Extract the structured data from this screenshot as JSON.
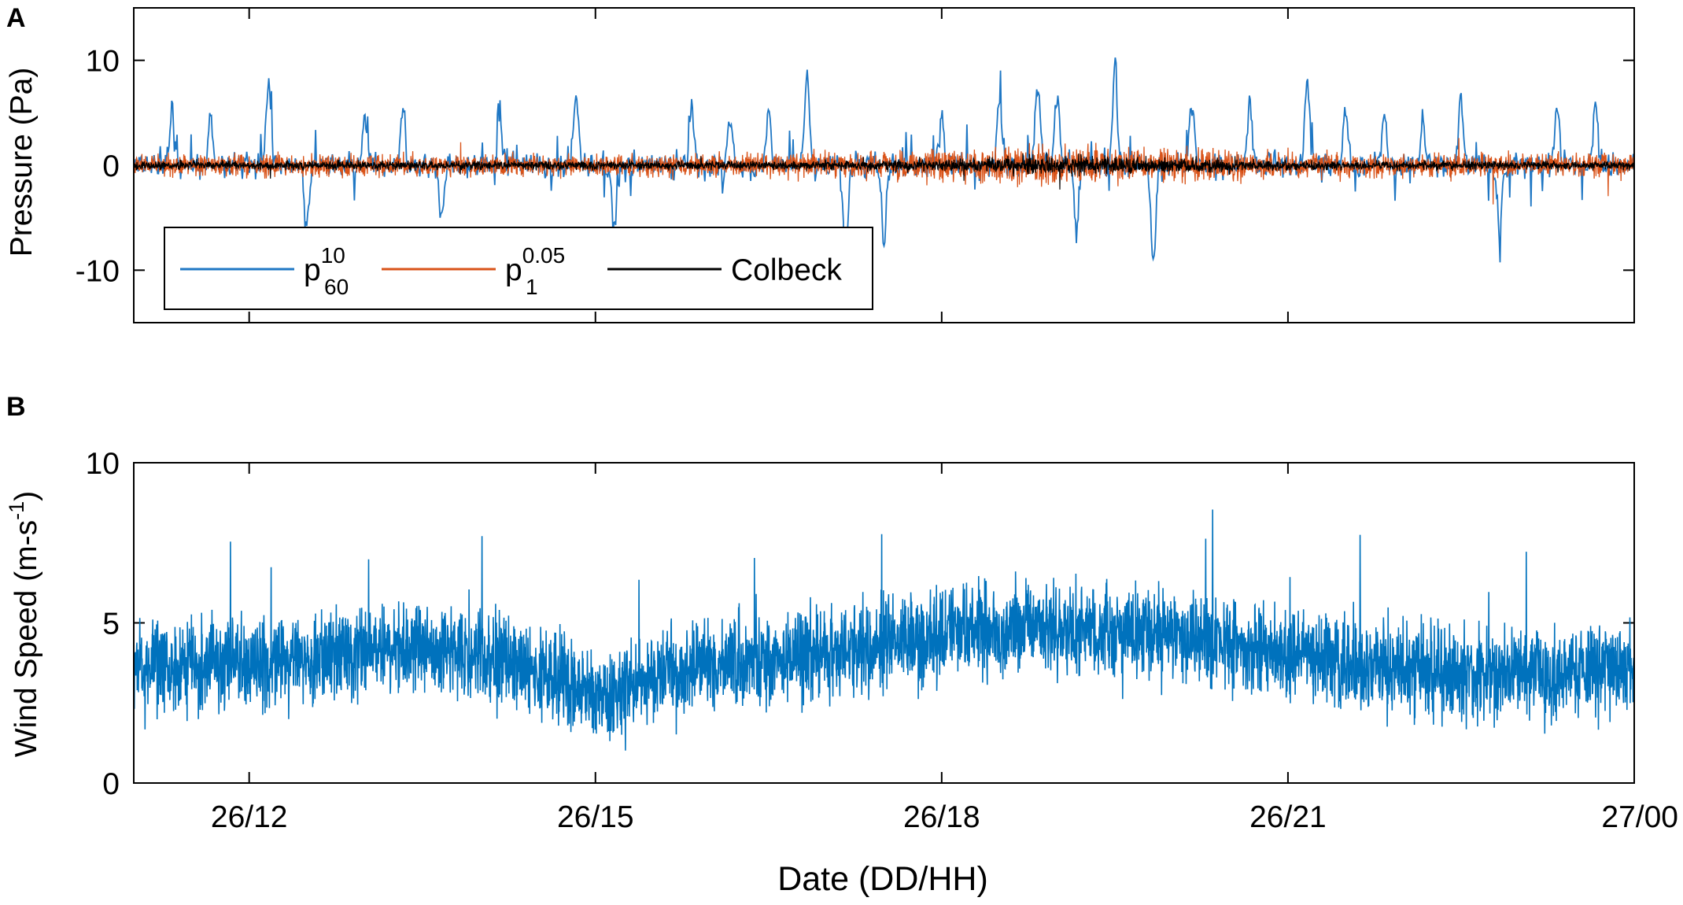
{
  "chart_data": [
    {
      "panel_label": "A",
      "type": "line",
      "xlabel": "",
      "ylabel": "Pressure (Pa)",
      "xlim": [
        "26/11:00",
        "27/00:00"
      ],
      "ylim": [
        -15,
        15
      ],
      "yticks": [
        -10,
        0,
        10
      ],
      "yticklabels": [
        "-10",
        "0",
        "10"
      ],
      "grid": false,
      "legend": {
        "position": "bottom-left",
        "orientation": "horizontal"
      },
      "series": [
        {
          "name": "p_60^10",
          "legend_base": "p",
          "legend_sub": "60",
          "legend_sup": "10",
          "color": "#1f77c4",
          "amplitude_pa": 10,
          "x": [
            "26/11:20",
            "26/11:40",
            "26/12:10",
            "26/12:30",
            "26/13:00",
            "26/13:20",
            "26/13:40",
            "26/14:10",
            "26/14:50",
            "26/15:10",
            "26/15:50",
            "26/16:10",
            "26/16:30",
            "26/16:50",
            "26/17:10",
            "26/17:30",
            "26/18:00",
            "26/18:30",
            "26/18:50",
            "26/19:00",
            "26/19:10",
            "26/19:30",
            "26/19:50",
            "26/20:10",
            "26/20:40",
            "26/21:10",
            "26/21:30",
            "26/21:50",
            "26/22:10",
            "26/22:30",
            "26/22:50",
            "26/23:20",
            "26/23:40"
          ],
          "y": [
            5.5,
            4.5,
            8.0,
            -6.0,
            4.5,
            5.5,
            -5.0,
            6.0,
            6.5,
            -6.0,
            5.5,
            4.5,
            5.0,
            8.7,
            -9.0,
            -7.5,
            5.0,
            6.0,
            8.0,
            7.0,
            -6.0,
            9.5,
            -9.5,
            6.0,
            6.0,
            8.0,
            5.5,
            5.0,
            4.5,
            6.5,
            -6.5,
            5.5,
            6.0
          ]
        },
        {
          "name": "p_1^0.05",
          "legend_base": "p",
          "legend_sub": "1",
          "legend_sup": "0.05",
          "color": "#d95319",
          "amplitude_pa": 2
        },
        {
          "name": "Colbeck",
          "legend_base": "Colbeck",
          "color": "#000000",
          "amplitude_pa": 1
        }
      ]
    },
    {
      "panel_label": "B",
      "type": "line",
      "xlabel": "Date (DD/HH)",
      "ylabel_main": "Wind Speed (m-s",
      "ylabel_sup": "-1",
      "ylabel_end": ")",
      "xlim": [
        "26/11:00",
        "27/00:00"
      ],
      "ylim": [
        0,
        10
      ],
      "yticks": [
        0,
        5,
        10
      ],
      "yticklabels": [
        "0",
        "5",
        "10"
      ],
      "xticks": [
        "26/12:00",
        "26/15:00",
        "26/18:00",
        "26/21:00",
        "27/00:00"
      ],
      "xticklabels": [
        "26/12",
        "26/15",
        "26/18",
        "26/21",
        "27/00"
      ],
      "grid": false,
      "series": [
        {
          "name": "",
          "color": "#0072bd",
          "min_ms": 0.2,
          "max_ms": 9.4
        }
      ]
    }
  ]
}
